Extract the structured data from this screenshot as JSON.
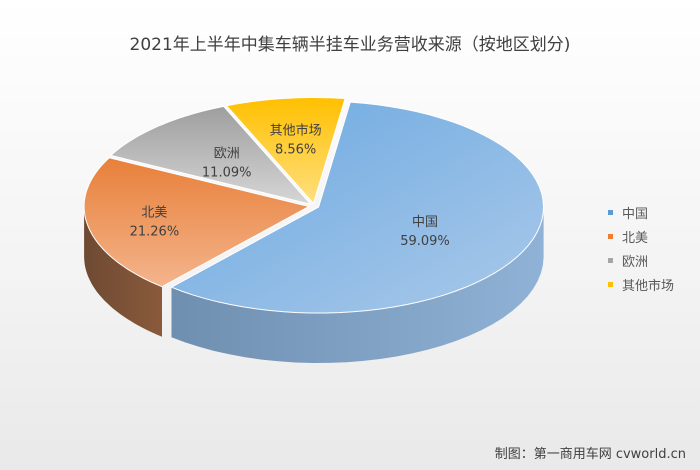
{
  "chart_data": {
    "type": "pie",
    "title": "2021年上半年中集车辆半挂车业务营收来源（按地区划分)",
    "categories": [
      "中国",
      "北美",
      "欧洲",
      "其他市场"
    ],
    "values": [
      59.09,
      21.26,
      11.09,
      8.56
    ],
    "value_labels": [
      "59.09%",
      "21.26%",
      "11.09%",
      "8.56%"
    ],
    "colors": [
      "#5b9bd5",
      "#ed7d31",
      "#a5a5a5",
      "#ffc000"
    ],
    "legend_position": "right",
    "style": "3d-exploded"
  },
  "credit": "制图：第一商用车网 cvworld.cn"
}
